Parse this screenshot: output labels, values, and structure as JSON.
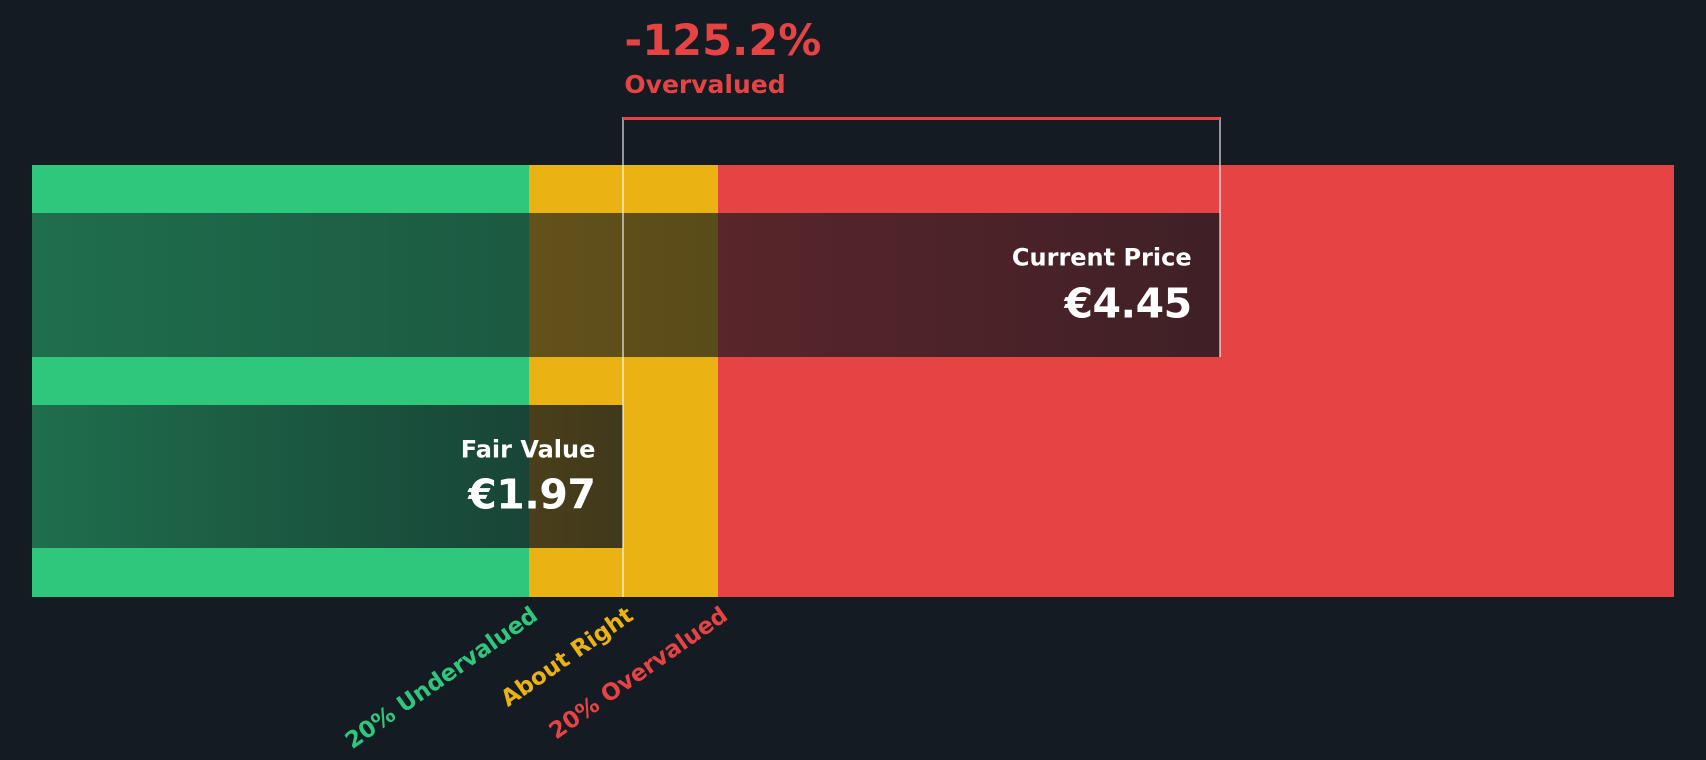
{
  "chart_data": {
    "type": "bar",
    "title": "-125.2% Overvalued — Current Price vs Fair Value",
    "series": [
      {
        "name": "Current Price",
        "display": "€4.45",
        "value": 4.45
      },
      {
        "name": "Fair Value",
        "display": "€1.97",
        "value": 1.97
      }
    ],
    "annotation": {
      "percent": "-125.2%",
      "status": "Overvalued",
      "color": "#e64444"
    },
    "zones": [
      {
        "label": "20% Undervalued",
        "color": "#2ec77c",
        "price_max": 1.576
      },
      {
        "label": "About Right",
        "color": "#eab212",
        "price_min": 1.576,
        "price_max": 2.364
      },
      {
        "label": "20% Overvalued",
        "color": "#e64444",
        "price_min": 2.364
      }
    ],
    "x_axis": {
      "unit": "€",
      "price_min": -0.49,
      "price_max": 6.34,
      "gridlines": false
    },
    "legend": "none",
    "notes": "Fair value marker line at €1.97; current price marker line at €4.45; red gap line spans fair value to current price."
  },
  "colors": {
    "background": "#151b23",
    "marker_line": "rgba(255,255,255,0.55)",
    "bar_text": "#ffffff"
  }
}
